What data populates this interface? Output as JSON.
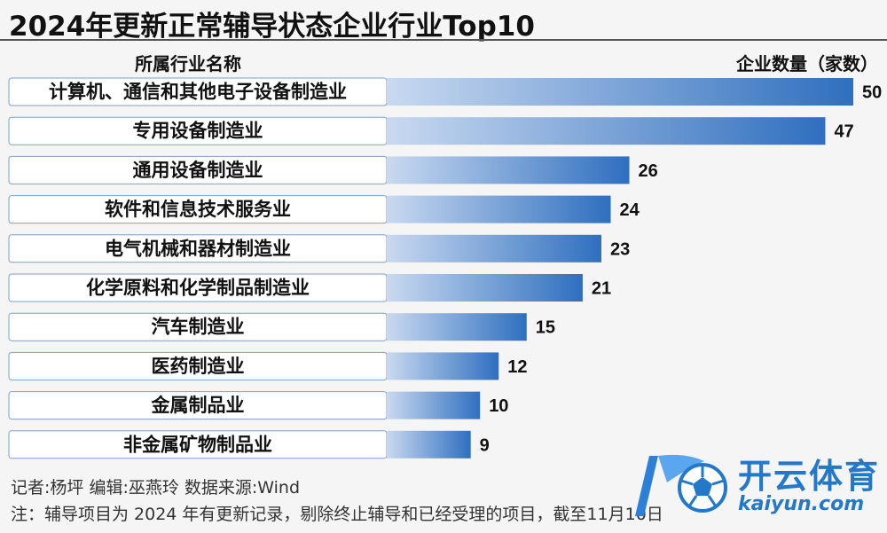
{
  "title": "2024年更新正常辅导状态企业行业Top10",
  "header": {
    "left_label": "所属行业名称",
    "right_label": "企业数量（家数）"
  },
  "chart_data": {
    "type": "bar",
    "orientation": "horizontal",
    "categories": [
      "计算机、通信和其他电子设备制造业",
      "专用设备制造业",
      "通用设备制造业",
      "软件和信息技术服务业",
      "电气机械和器材制造业",
      "化学原料和化学制品制造业",
      "汽车制造业",
      "医药制造业",
      "金属制品业",
      "非金属矿物制品业"
    ],
    "values": [
      50,
      47,
      26,
      24,
      23,
      21,
      15,
      12,
      10,
      9
    ],
    "xlim": [
      0,
      50
    ],
    "grid": false,
    "bar_color_start": "#c9d9f0",
    "bar_color_end": "#2f6fbf"
  },
  "footer": {
    "line1": "记者:杨坪    编辑:巫燕玲    数据来源:Wind",
    "line2": "注：辅导项目为 2024 年有更新记录，剔除终止辅导和已经受理的项目，截至11月10日"
  },
  "watermark": {
    "brand": "开云体育",
    "url": "kaiyun.com",
    "icon": "soccer-ball-logo-icon",
    "color": "#2478c8"
  }
}
